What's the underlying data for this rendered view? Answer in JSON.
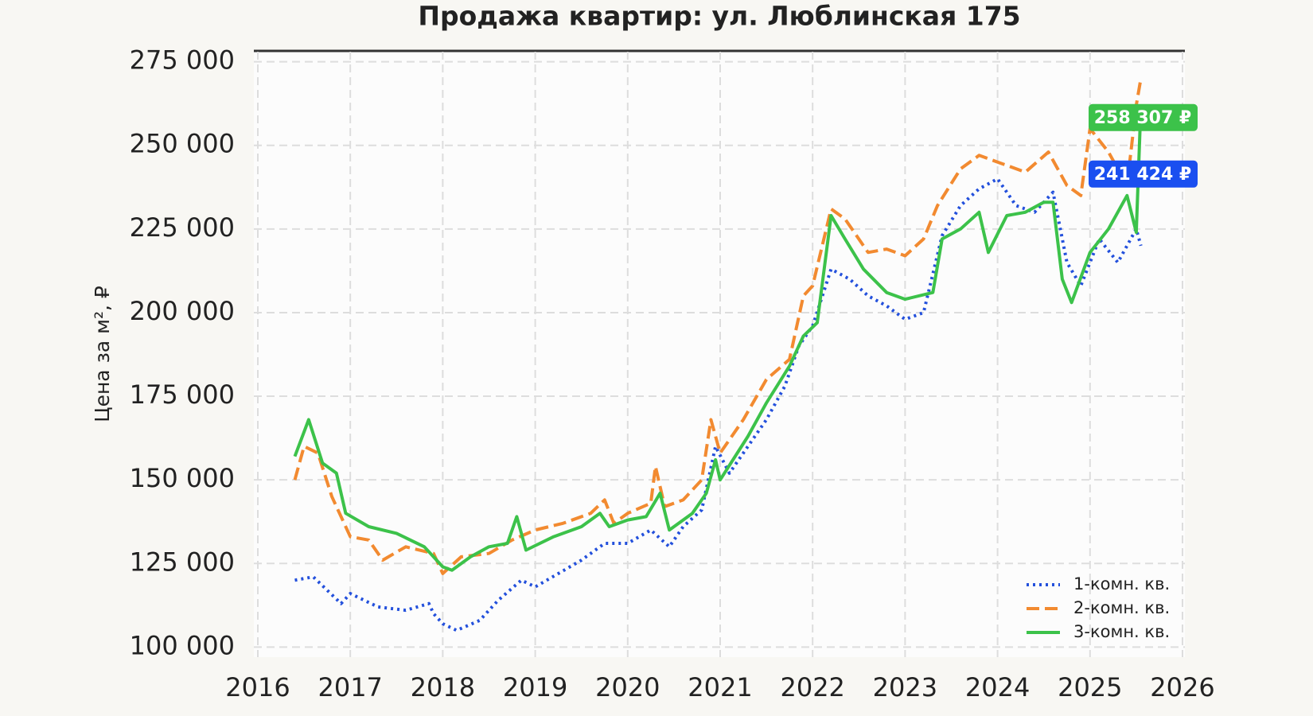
{
  "chart_data": {
    "type": "line",
    "title": "Продажа квартир: ул. Люблинская 175",
    "y_label": "Цена за м², ₽",
    "xlim": [
      2016,
      2026
    ],
    "xticks": [
      2016,
      2017,
      2018,
      2019,
      2020,
      2021,
      2022,
      2023,
      2024,
      2025,
      2026
    ],
    "ylim": [
      97000,
      278000
    ],
    "yticks": [
      {
        "value": 100000,
        "label": "100 000"
      },
      {
        "value": 125000,
        "label": "125 000"
      },
      {
        "value": 150000,
        "label": "150 000"
      },
      {
        "value": 175000,
        "label": "175 000"
      },
      {
        "value": 200000,
        "label": "200 000"
      },
      {
        "value": 225000,
        "label": "225 000"
      },
      {
        "value": 250000,
        "label": "250 000"
      },
      {
        "value": 275000,
        "label": "275 000"
      }
    ],
    "grid": true,
    "legend": "lower right",
    "series": [
      {
        "name": "1-комн. кв.",
        "color": "#2350dc",
        "linestyle": "dotted",
        "x": [
          2016.4,
          2016.6,
          2016.9,
          2017.0,
          2017.3,
          2017.6,
          2017.85,
          2017.9,
          2018.0,
          2018.15,
          2018.4,
          2018.6,
          2018.85,
          2019.0,
          2019.25,
          2019.5,
          2019.75,
          2020.0,
          2020.25,
          2020.45,
          2020.6,
          2020.8,
          2020.95,
          2021.1,
          2021.3,
          2021.5,
          2021.7,
          2021.85,
          2022.0,
          2022.2,
          2022.4,
          2022.6,
          2022.8,
          2023.0,
          2023.2,
          2023.4,
          2023.6,
          2023.8,
          2024.0,
          2024.2,
          2024.4,
          2024.6,
          2024.75,
          2024.9,
          2025.1,
          2025.3,
          2025.5,
          2025.55
        ],
        "values": [
          120000,
          121000,
          113000,
          116000,
          112000,
          111000,
          113000,
          110000,
          107000,
          105000,
          108000,
          114000,
          120000,
          118000,
          122000,
          126000,
          131000,
          131000,
          135000,
          130000,
          136000,
          141000,
          160000,
          152000,
          160000,
          168000,
          178000,
          190000,
          196000,
          213000,
          210000,
          205000,
          202000,
          198000,
          200000,
          223000,
          232000,
          237000,
          240000,
          232000,
          230000,
          236000,
          215000,
          208000,
          222000,
          215000,
          225000,
          220000
        ]
      },
      {
        "name": "2-комн. кв.",
        "color": "#f28a30",
        "linestyle": "dashed",
        "x": [
          2016.4,
          2016.5,
          2016.65,
          2016.8,
          2017.0,
          2017.2,
          2017.35,
          2017.6,
          2017.9,
          2018.0,
          2018.2,
          2018.5,
          2018.75,
          2019.0,
          2019.3,
          2019.6,
          2019.75,
          2019.85,
          2020.0,
          2020.25,
          2020.3,
          2020.4,
          2020.6,
          2020.8,
          2020.9,
          2021.0,
          2021.25,
          2021.5,
          2021.75,
          2021.9,
          2022.0,
          2022.2,
          2022.35,
          2022.6,
          2022.8,
          2023.0,
          2023.2,
          2023.35,
          2023.6,
          2023.8,
          2024.0,
          2024.3,
          2024.55,
          2024.75,
          2024.9,
          2025.0,
          2025.2,
          2025.4,
          2025.5,
          2025.55
        ],
        "values": [
          150000,
          160000,
          158000,
          145000,
          133000,
          132000,
          126000,
          130000,
          128000,
          122000,
          127000,
          128000,
          132000,
          135000,
          137000,
          140000,
          144000,
          137000,
          140000,
          143000,
          154000,
          142000,
          144000,
          150000,
          168000,
          158000,
          168000,
          180000,
          186000,
          205000,
          208000,
          231000,
          228000,
          218000,
          219000,
          217000,
          222000,
          232000,
          243000,
          247000,
          245000,
          242000,
          248000,
          238000,
          235000,
          255000,
          248000,
          238000,
          262000,
          270000
        ]
      },
      {
        "name": "3-комн. кв.",
        "color": "#3cc24a",
        "linestyle": "solid",
        "x": [
          2016.4,
          2016.55,
          2016.7,
          2016.85,
          2016.95,
          2017.2,
          2017.5,
          2017.8,
          2018.0,
          2018.1,
          2018.3,
          2018.5,
          2018.7,
          2018.8,
          2018.9,
          2019.2,
          2019.5,
          2019.7,
          2019.8,
          2020.0,
          2020.2,
          2020.35,
          2020.45,
          2020.7,
          2020.85,
          2020.95,
          2021.0,
          2021.3,
          2021.5,
          2021.75,
          2021.9,
          2022.05,
          2022.2,
          2022.35,
          2022.55,
          2022.8,
          2023.0,
          2023.3,
          2023.4,
          2023.6,
          2023.8,
          2023.9,
          2024.1,
          2024.3,
          2024.5,
          2024.6,
          2024.7,
          2024.8,
          2025.0,
          2025.2,
          2025.4,
          2025.5,
          2025.55
        ],
        "values": [
          157000,
          168000,
          155000,
          152000,
          140000,
          136000,
          134000,
          130000,
          124000,
          123000,
          127000,
          130000,
          131000,
          139000,
          129000,
          133000,
          136000,
          140000,
          136000,
          138000,
          139000,
          146000,
          135000,
          140000,
          146000,
          156000,
          150000,
          163000,
          173000,
          184000,
          193000,
          197000,
          229000,
          222000,
          213000,
          206000,
          204000,
          206000,
          222000,
          225000,
          230000,
          218000,
          229000,
          230000,
          233000,
          233000,
          210000,
          203000,
          218000,
          225000,
          235000,
          224000,
          262000
        ]
      }
    ],
    "annotations": [
      {
        "value": 258307,
        "label": "258 307 ₽",
        "color": "#3cc24a"
      },
      {
        "value": 241424,
        "label": "241 424 ₽",
        "color": "#1a4ff0"
      }
    ]
  }
}
